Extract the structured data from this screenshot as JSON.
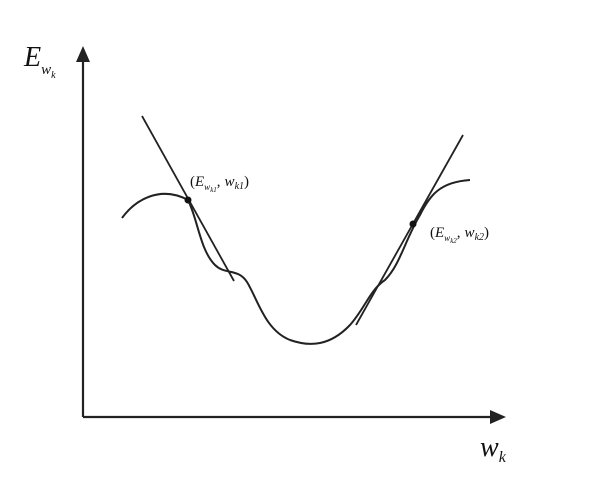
{
  "axes": {
    "y_label": {
      "main": "E",
      "sub": "w",
      "subsub": "k"
    },
    "x_label": {
      "main": "w",
      "sub": "k"
    }
  },
  "points": [
    {
      "open": "(",
      "e": "E",
      "e_sub": "w",
      "e_subsub": "k1",
      "sep": ",",
      "w": "w",
      "w_sub": "k1",
      "close": ")"
    },
    {
      "open": "(",
      "e": "E",
      "e_sub": "w",
      "e_subsub": "k2",
      "sep": ",",
      "w": "w",
      "w_sub": "k2",
      "close": ")"
    }
  ]
}
